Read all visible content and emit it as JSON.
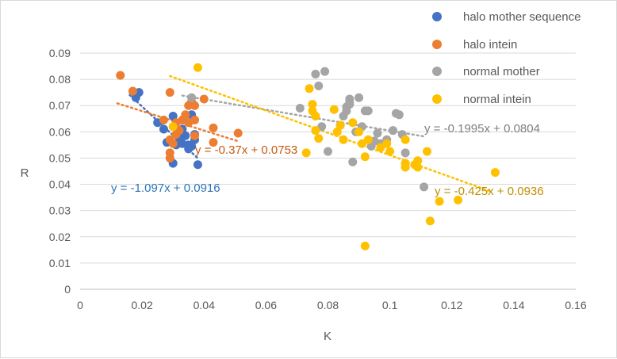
{
  "chart_data": {
    "type": "scatter",
    "xlabel": "K",
    "ylabel": "R",
    "xlim": [
      0,
      0.16
    ],
    "ylim": [
      0,
      0.09
    ],
    "xticks": [
      "0",
      "0.02",
      "0.04",
      "0.06",
      "0.08",
      "0.1",
      "0.12",
      "0.14",
      "0.16"
    ],
    "yticks": [
      "0",
      "0.01",
      "0.02",
      "0.03",
      "0.04",
      "0.05",
      "0.06",
      "0.07",
      "0.08",
      "0.09"
    ],
    "grid": "horizontal",
    "legend_position": "top-right",
    "series": [
      {
        "name": "halo mother sequence",
        "color": "#4472c4",
        "trendline": {
          "slope": -1.097,
          "intercept": 0.0916,
          "x_range": [
            0.016,
            0.038
          ],
          "label": "y = -1.097x + 0.0916"
        },
        "points": [
          [
            0.018,
            0.073
          ],
          [
            0.019,
            0.075
          ],
          [
            0.025,
            0.0635
          ],
          [
            0.027,
            0.061
          ],
          [
            0.028,
            0.056
          ],
          [
            0.03,
            0.066
          ],
          [
            0.03,
            0.048
          ],
          [
            0.031,
            0.055
          ],
          [
            0.032,
            0.0575
          ],
          [
            0.033,
            0.061
          ],
          [
            0.033,
            0.0555
          ],
          [
            0.034,
            0.0585
          ],
          [
            0.035,
            0.0535
          ],
          [
            0.035,
            0.055
          ],
          [
            0.036,
            0.0545
          ],
          [
            0.036,
            0.0665
          ],
          [
            0.037,
            0.057
          ],
          [
            0.037,
            0.059
          ],
          [
            0.038,
            0.0475
          ]
        ]
      },
      {
        "name": "halo intein",
        "color": "#ed7d31",
        "trendline": {
          "slope": -0.37,
          "intercept": 0.0753,
          "x_range": [
            0.012,
            0.051
          ],
          "label": "y = -0.37x + 0.0753"
        },
        "points": [
          [
            0.013,
            0.0815
          ],
          [
            0.017,
            0.0755
          ],
          [
            0.027,
            0.0645
          ],
          [
            0.029,
            0.075
          ],
          [
            0.029,
            0.052
          ],
          [
            0.029,
            0.05
          ],
          [
            0.029,
            0.057
          ],
          [
            0.03,
            0.0555
          ],
          [
            0.031,
            0.0635
          ],
          [
            0.031,
            0.059
          ],
          [
            0.032,
            0.0605
          ],
          [
            0.033,
            0.0645
          ],
          [
            0.034,
            0.0665
          ],
          [
            0.035,
            0.07
          ],
          [
            0.035,
            0.0635
          ],
          [
            0.036,
            0.0715
          ],
          [
            0.037,
            0.0645
          ],
          [
            0.037,
            0.07
          ],
          [
            0.037,
            0.0585
          ],
          [
            0.04,
            0.0725
          ],
          [
            0.043,
            0.0615
          ],
          [
            0.043,
            0.056
          ],
          [
            0.051,
            0.0595
          ]
        ]
      },
      {
        "name": "normal mother",
        "color": "#a5a5a5",
        "trendline": {
          "slope": -0.1995,
          "intercept": 0.0804,
          "x_range": [
            0.033,
            0.111
          ],
          "label": "y = -0.1995x + 0.0804"
        },
        "points": [
          [
            0.036,
            0.073
          ],
          [
            0.071,
            0.069
          ],
          [
            0.076,
            0.082
          ],
          [
            0.077,
            0.0775
          ],
          [
            0.078,
            0.062
          ],
          [
            0.079,
            0.083
          ],
          [
            0.08,
            0.0525
          ],
          [
            0.084,
            0.0625
          ],
          [
            0.085,
            0.066
          ],
          [
            0.086,
            0.0695
          ],
          [
            0.086,
            0.068
          ],
          [
            0.087,
            0.0725
          ],
          [
            0.087,
            0.0705
          ],
          [
            0.087,
            0.0715
          ],
          [
            0.088,
            0.0485
          ],
          [
            0.089,
            0.06
          ],
          [
            0.09,
            0.073
          ],
          [
            0.091,
            0.062
          ],
          [
            0.092,
            0.068
          ],
          [
            0.093,
            0.068
          ],
          [
            0.094,
            0.0545
          ],
          [
            0.095,
            0.0565
          ],
          [
            0.096,
            0.0595
          ],
          [
            0.097,
            0.0555
          ],
          [
            0.099,
            0.057
          ],
          [
            0.101,
            0.0605
          ],
          [
            0.102,
            0.067
          ],
          [
            0.103,
            0.0665
          ],
          [
            0.104,
            0.059
          ],
          [
            0.105,
            0.052
          ],
          [
            0.111,
            0.039
          ]
        ]
      },
      {
        "name": "normal intein",
        "color": "#ffc000",
        "trendline": {
          "slope": -0.425,
          "intercept": 0.0936,
          "x_range": [
            0.029,
            0.133
          ],
          "label": "y = -0.425x + 0.0936"
        },
        "points": [
          [
            0.03,
            0.062
          ],
          [
            0.038,
            0.0845
          ],
          [
            0.073,
            0.052
          ],
          [
            0.074,
            0.0765
          ],
          [
            0.075,
            0.068
          ],
          [
            0.075,
            0.0705
          ],
          [
            0.076,
            0.0605
          ],
          [
            0.076,
            0.066
          ],
          [
            0.077,
            0.0575
          ],
          [
            0.082,
            0.0685
          ],
          [
            0.083,
            0.06
          ],
          [
            0.084,
            0.0625
          ],
          [
            0.085,
            0.057
          ],
          [
            0.088,
            0.0635
          ],
          [
            0.09,
            0.06
          ],
          [
            0.091,
            0.0555
          ],
          [
            0.092,
            0.0505
          ],
          [
            0.092,
            0.0165
          ],
          [
            0.093,
            0.057
          ],
          [
            0.097,
            0.054
          ],
          [
            0.099,
            0.0555
          ],
          [
            0.1,
            0.0525
          ],
          [
            0.105,
            0.057
          ],
          [
            0.105,
            0.048
          ],
          [
            0.105,
            0.0465
          ],
          [
            0.108,
            0.0475
          ],
          [
            0.109,
            0.049
          ],
          [
            0.109,
            0.0465
          ],
          [
            0.112,
            0.0525
          ],
          [
            0.113,
            0.026
          ],
          [
            0.116,
            0.0335
          ],
          [
            0.122,
            0.034
          ],
          [
            0.134,
            0.0445
          ]
        ]
      }
    ]
  }
}
